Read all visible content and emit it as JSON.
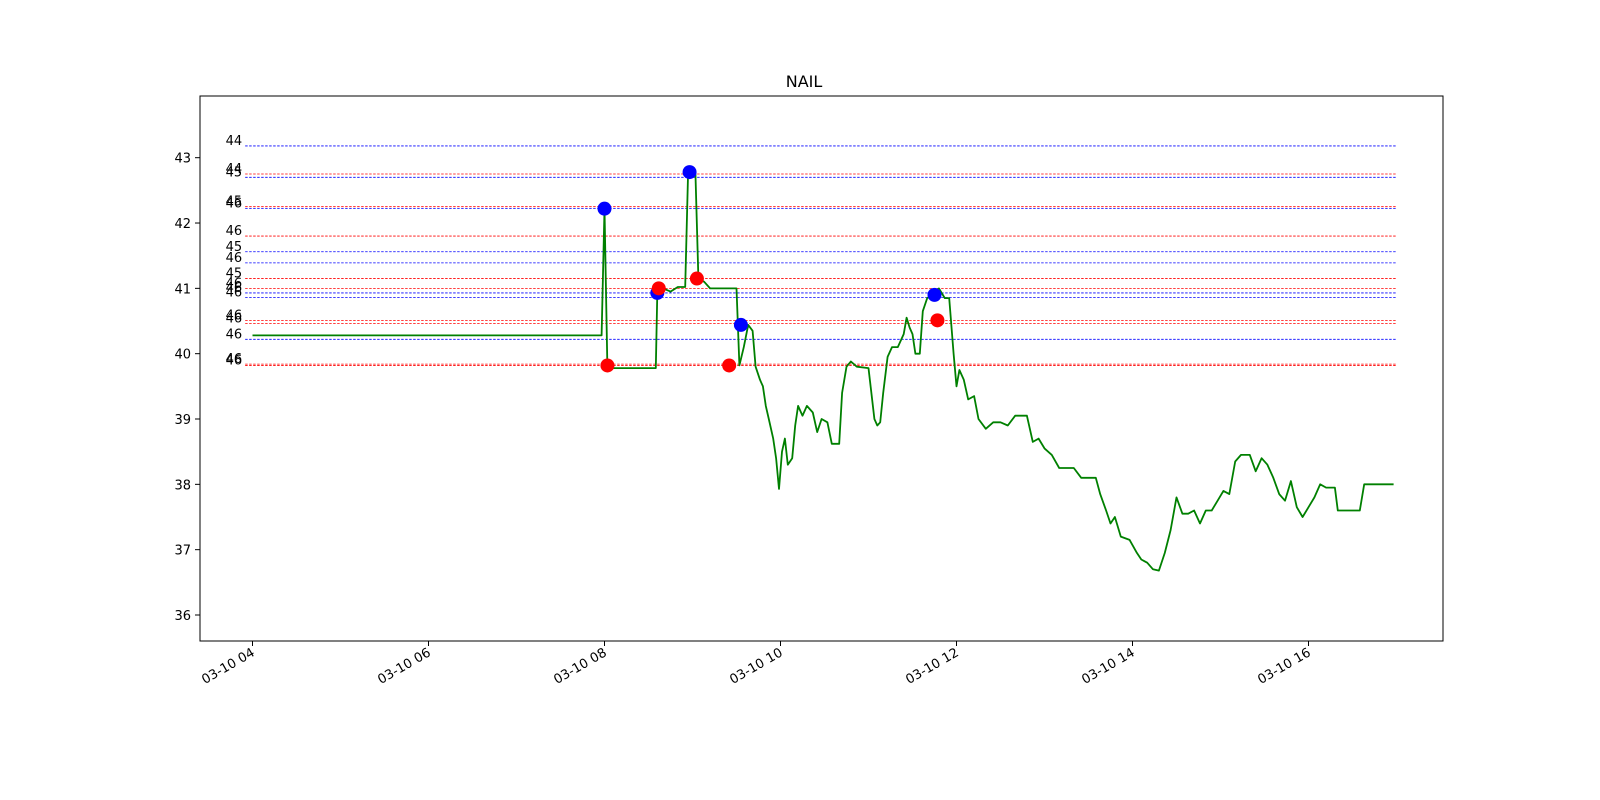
{
  "chart_data": {
    "type": "line",
    "title": "NAIL",
    "xlabel": "",
    "ylabel": "",
    "ylim": [
      35.6,
      43.95
    ],
    "xlim": [
      "03-10 03:25",
      "03-10 17:35"
    ],
    "grid": false,
    "colors": {
      "price": "#008000",
      "buy": "#ff0000",
      "sell": "#0000ff"
    },
    "x_ticks": [
      "03-10 04",
      "03-10 06",
      "03-10 08",
      "03-10 10",
      "03-10 12",
      "03-10 14",
      "03-10 16"
    ],
    "x_tick_times": [
      "04:00",
      "06:00",
      "08:00",
      "10:00",
      "12:00",
      "14:00",
      "16:00"
    ],
    "y_ticks": [
      "36",
      "37",
      "38",
      "39",
      "40",
      "41",
      "42",
      "43"
    ],
    "y_tick_values": [
      36,
      37,
      38,
      39,
      40,
      41,
      42,
      43
    ],
    "levels": [
      {
        "y": 43.18,
        "label": "44",
        "color": "#0000ff"
      },
      {
        "y": 42.75,
        "label": "44",
        "color": "#ff0000"
      },
      {
        "y": 42.7,
        "label": "45",
        "color": "#0000ff"
      },
      {
        "y": 42.25,
        "label": "45",
        "color": "#ff0000"
      },
      {
        "y": 42.22,
        "label": "46",
        "color": "#0000ff"
      },
      {
        "y": 41.8,
        "label": "46",
        "color": "#ff0000"
      },
      {
        "y": 41.56,
        "label": "45",
        "color": "#0000ff"
      },
      {
        "y": 41.39,
        "label": "46",
        "color": "#0000ff"
      },
      {
        "y": 41.15,
        "label": "45",
        "color": "#ff0000"
      },
      {
        "y": 41.0,
        "label": "46",
        "color": "#ff0000"
      },
      {
        "y": 40.93,
        "label": "46",
        "color": "#0000ff"
      },
      {
        "y": 40.86,
        "label": "46",
        "color": "#0000ff"
      },
      {
        "y": 40.51,
        "label": "46",
        "color": "#ff0000"
      },
      {
        "y": 40.46,
        "label": "46",
        "color": "#ff0000"
      },
      {
        "y": 40.22,
        "label": "46",
        "color": "#0000ff"
      },
      {
        "y": 39.84,
        "label": "46",
        "color": "#ff0000"
      },
      {
        "y": 39.82,
        "label": "46",
        "color": "#ff0000"
      }
    ],
    "series": [
      {
        "points": [
          [
            "04:00",
            40.28
          ],
          [
            "07:58",
            40.28
          ],
          [
            "08:00",
            42.22
          ],
          [
            "08:02",
            39.78
          ],
          [
            "08:35",
            39.78
          ],
          [
            "08:36",
            40.93
          ],
          [
            "08:40",
            41.0
          ],
          [
            "08:45",
            40.95
          ],
          [
            "08:50",
            41.02
          ],
          [
            "08:55",
            41.02
          ],
          [
            "08:57",
            42.78
          ],
          [
            "09:02",
            42.78
          ],
          [
            "09:04",
            41.15
          ],
          [
            "09:08",
            41.1
          ],
          [
            "09:12",
            41.0
          ],
          [
            "09:30",
            41.0
          ],
          [
            "09:32",
            39.82
          ],
          [
            "09:35",
            40.1
          ],
          [
            "09:38",
            40.44
          ],
          [
            "09:41",
            40.35
          ],
          [
            "09:43",
            39.8
          ],
          [
            "09:46",
            39.6
          ],
          [
            "09:48",
            39.5
          ],
          [
            "09:50",
            39.2
          ],
          [
            "09:52",
            39.0
          ],
          [
            "09:55",
            38.7
          ],
          [
            "09:57",
            38.4
          ],
          [
            "09:59",
            37.93
          ],
          [
            "10:01",
            38.5
          ],
          [
            "10:03",
            38.7
          ],
          [
            "10:05",
            38.3
          ],
          [
            "10:08",
            38.4
          ],
          [
            "10:10",
            38.9
          ],
          [
            "10:12",
            39.2
          ],
          [
            "10:15",
            39.05
          ],
          [
            "10:18",
            39.2
          ],
          [
            "10:22",
            39.1
          ],
          [
            "10:25",
            38.8
          ],
          [
            "10:28",
            39.0
          ],
          [
            "10:32",
            38.95
          ],
          [
            "10:35",
            38.62
          ],
          [
            "10:40",
            38.62
          ],
          [
            "10:42",
            39.4
          ],
          [
            "10:45",
            39.8
          ],
          [
            "10:48",
            39.88
          ],
          [
            "10:52",
            39.8
          ],
          [
            "11:00",
            39.78
          ],
          [
            "11:04",
            39.0
          ],
          [
            "11:06",
            38.9
          ],
          [
            "11:08",
            38.95
          ],
          [
            "11:10",
            39.4
          ],
          [
            "11:13",
            39.95
          ],
          [
            "11:16",
            40.1
          ],
          [
            "11:20",
            40.1
          ],
          [
            "11:24",
            40.3
          ],
          [
            "11:26",
            40.55
          ],
          [
            "11:28",
            40.4
          ],
          [
            "11:30",
            40.3
          ],
          [
            "11:32",
            40.0
          ],
          [
            "11:35",
            40.0
          ],
          [
            "11:37",
            40.65
          ],
          [
            "11:40",
            40.85
          ],
          [
            "11:44",
            40.9
          ],
          [
            "11:48",
            41.0
          ],
          [
            "11:52",
            40.85
          ],
          [
            "11:55",
            40.85
          ],
          [
            "11:58",
            40.0
          ],
          [
            "12:00",
            39.5
          ],
          [
            "12:02",
            39.75
          ],
          [
            "12:05",
            39.6
          ],
          [
            "12:08",
            39.3
          ],
          [
            "12:12",
            39.35
          ],
          [
            "12:15",
            39.0
          ],
          [
            "12:20",
            38.85
          ],
          [
            "12:25",
            38.95
          ],
          [
            "12:30",
            38.95
          ],
          [
            "12:35",
            38.9
          ],
          [
            "12:40",
            39.05
          ],
          [
            "12:48",
            39.05
          ],
          [
            "12:52",
            38.65
          ],
          [
            "12:56",
            38.7
          ],
          [
            "13:00",
            38.55
          ],
          [
            "13:05",
            38.45
          ],
          [
            "13:10",
            38.25
          ],
          [
            "13:20",
            38.25
          ],
          [
            "13:25",
            38.1
          ],
          [
            "13:35",
            38.1
          ],
          [
            "13:38",
            37.85
          ],
          [
            "13:42",
            37.6
          ],
          [
            "13:45",
            37.4
          ],
          [
            "13:48",
            37.5
          ],
          [
            "13:52",
            37.2
          ],
          [
            "13:58",
            37.15
          ],
          [
            "14:03",
            36.95
          ],
          [
            "14:06",
            36.85
          ],
          [
            "14:10",
            36.8
          ],
          [
            "14:14",
            36.7
          ],
          [
            "14:18",
            36.68
          ],
          [
            "14:22",
            36.95
          ],
          [
            "14:26",
            37.3
          ],
          [
            "14:30",
            37.8
          ],
          [
            "14:34",
            37.55
          ],
          [
            "14:38",
            37.55
          ],
          [
            "14:42",
            37.6
          ],
          [
            "14:46",
            37.4
          ],
          [
            "14:50",
            37.6
          ],
          [
            "14:54",
            37.6
          ],
          [
            "14:58",
            37.75
          ],
          [
            "15:02",
            37.9
          ],
          [
            "15:06",
            37.85
          ],
          [
            "15:10",
            38.35
          ],
          [
            "15:14",
            38.45
          ],
          [
            "15:20",
            38.45
          ],
          [
            "15:24",
            38.2
          ],
          [
            "15:28",
            38.4
          ],
          [
            "15:32",
            38.3
          ],
          [
            "15:36",
            38.1
          ],
          [
            "15:40",
            37.85
          ],
          [
            "15:44",
            37.75
          ],
          [
            "15:48",
            38.05
          ],
          [
            "15:52",
            37.65
          ],
          [
            "15:56",
            37.5
          ],
          [
            "16:00",
            37.65
          ],
          [
            "16:04",
            37.8
          ],
          [
            "16:08",
            38.0
          ],
          [
            "16:12",
            37.95
          ],
          [
            "16:18",
            37.95
          ],
          [
            "16:20",
            37.6
          ],
          [
            "16:35",
            37.6
          ],
          [
            "16:38",
            38.0
          ],
          [
            "16:58",
            38.0
          ]
        ]
      }
    ],
    "markers": [
      {
        "x": "08:00",
        "y": 42.22,
        "type": "sell"
      },
      {
        "x": "08:02",
        "y": 39.82,
        "type": "buy"
      },
      {
        "x": "08:36",
        "y": 40.93,
        "type": "sell"
      },
      {
        "x": "08:37",
        "y": 41.0,
        "type": "buy"
      },
      {
        "x": "08:58",
        "y": 42.78,
        "type": "sell"
      },
      {
        "x": "09:03",
        "y": 41.15,
        "type": "buy"
      },
      {
        "x": "09:25",
        "y": 39.82,
        "type": "buy"
      },
      {
        "x": "09:33",
        "y": 40.44,
        "type": "sell"
      },
      {
        "x": "11:45",
        "y": 40.9,
        "type": "sell"
      },
      {
        "x": "11:47",
        "y": 40.51,
        "type": "buy"
      }
    ]
  }
}
